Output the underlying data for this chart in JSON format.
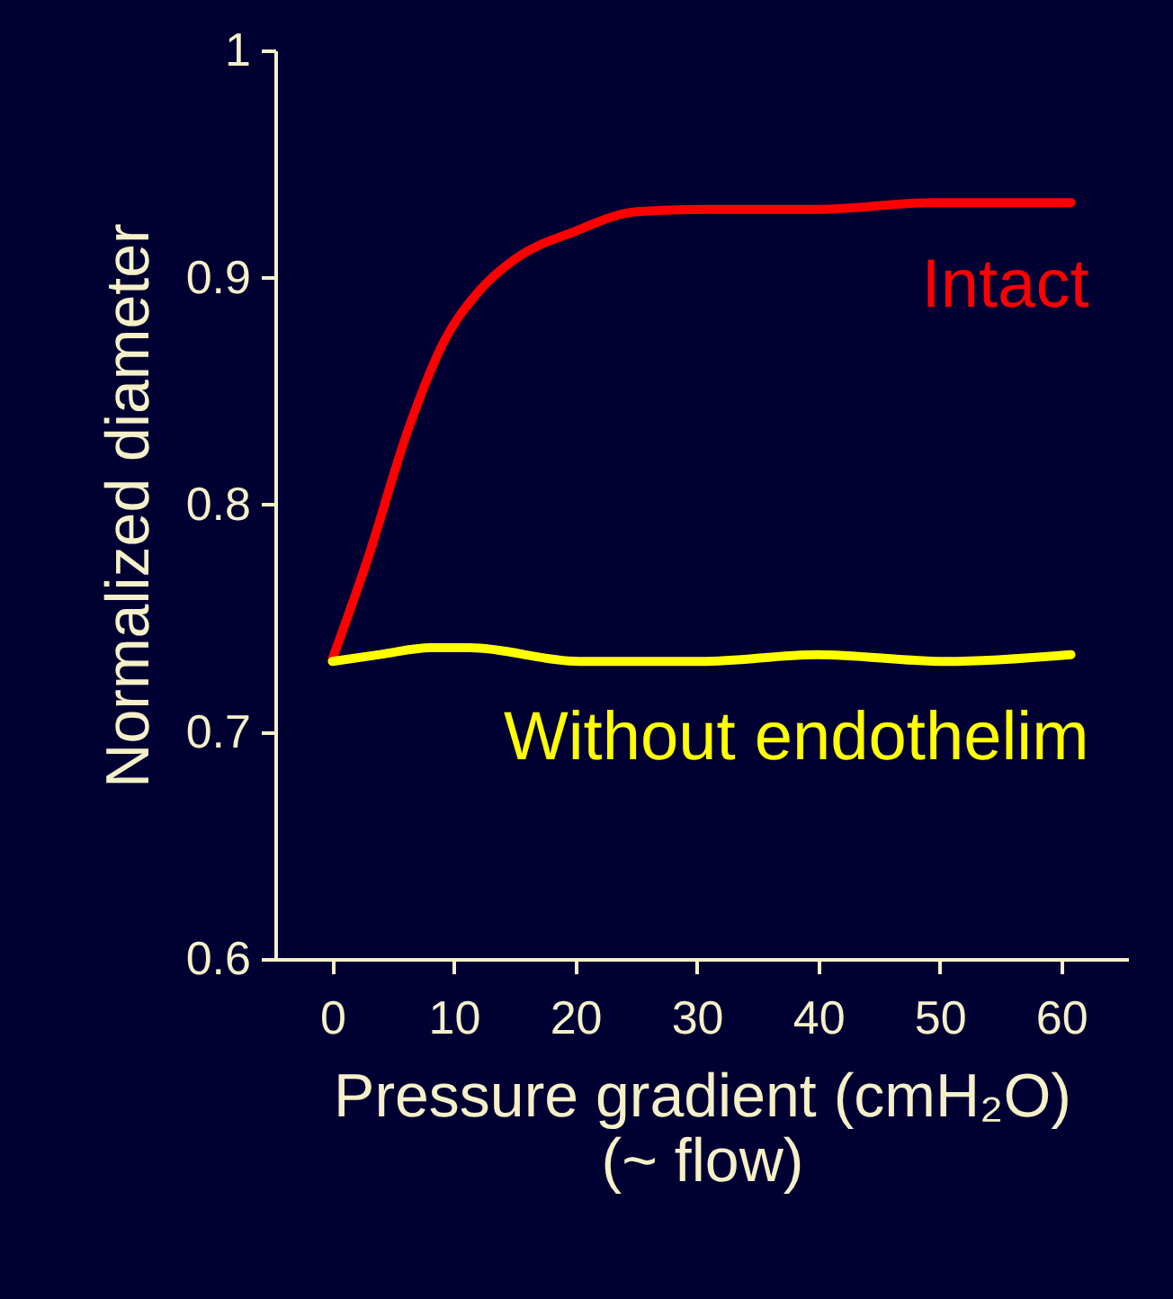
{
  "chart_data": {
    "type": "line",
    "xlabel": "Pressure gradient (cmH₂O)\n(~ flow)",
    "ylabel": "Normalized diameter",
    "xlim": [
      -4.7,
      65.5
    ],
    "xticks": [
      0,
      10,
      20,
      30,
      40,
      50,
      60
    ],
    "ylim": [
      0.6,
      1
    ],
    "yticks": [
      0.6,
      0.7,
      0.8,
      0.9,
      1
    ],
    "grid": false,
    "line_style": "solid",
    "marker": "none",
    "series": [
      {
        "name": "Intact",
        "color": "#ff0000",
        "x": [
          0,
          2.9,
          6.3,
          9.2,
          11.9,
          15,
          19.8,
          25.1,
          30.4,
          39.9,
          49.4,
          60.8
        ],
        "values": [
          0.732,
          0.776,
          0.834,
          0.872,
          0.893,
          0.908,
          0.92,
          0.929,
          0.93,
          0.93,
          0.933,
          0.933
        ]
      },
      {
        "name": "Without endothelim",
        "color": "#ffff00",
        "x": [
          0,
          3.9,
          8.1,
          11.3,
          20.3,
          30.4,
          39.9,
          50.5,
          60.8
        ],
        "values": [
          0.731,
          0.734,
          0.737,
          0.737,
          0.731,
          0.731,
          0.734,
          0.731,
          0.734
        ]
      }
    ]
  }
}
